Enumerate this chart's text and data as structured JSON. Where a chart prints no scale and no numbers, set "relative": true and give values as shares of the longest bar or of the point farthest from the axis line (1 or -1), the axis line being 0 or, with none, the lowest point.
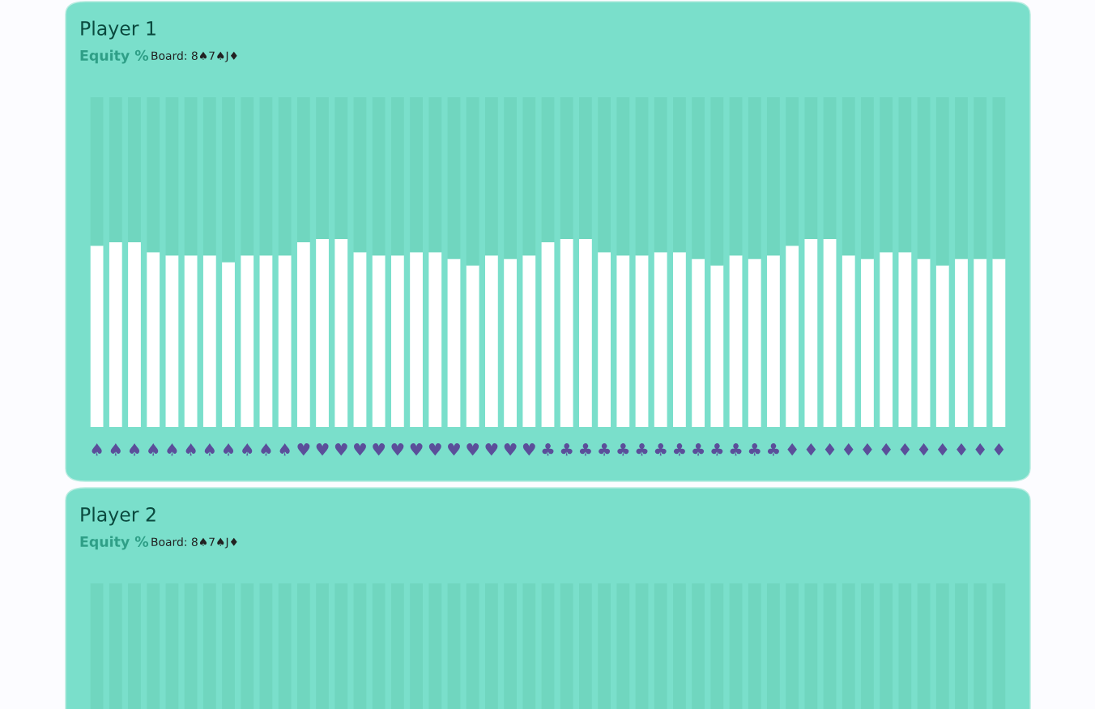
{
  "chart_data": [
    {
      "type": "bar",
      "title": "Player 1",
      "subtitle": "Equity %",
      "annotations": [
        "Board: 8♠7♠J♦"
      ],
      "relative": true,
      "stacked": true,
      "tick_labels": "x",
      "categories": [
        "♠",
        "♠",
        "♠",
        "♠",
        "♠",
        "♠",
        "♠",
        "♠",
        "♠",
        "♠",
        "♠",
        "♥",
        "♥",
        "♥",
        "♥",
        "♥",
        "♥",
        "♥",
        "♥",
        "♥",
        "♥",
        "♥",
        "♥",
        "♥",
        "♣",
        "♣",
        "♣",
        "♣",
        "♣",
        "♣",
        "♣",
        "♣",
        "♣",
        "♣",
        "♣",
        "♣",
        "♣",
        "♦",
        "♦",
        "♦",
        "♦",
        "♦",
        "♦",
        "♦",
        "♦",
        "♦",
        "♦",
        "♦",
        "♦"
      ],
      "series": [
        {
          "color": "#ffffff",
          "values": [
            0.55,
            0.56,
            0.56,
            0.53,
            0.52,
            0.52,
            0.52,
            0.5,
            0.52,
            0.52,
            0.52,
            0.56,
            0.57,
            0.57,
            0.53,
            0.52,
            0.52,
            0.53,
            0.53,
            0.51,
            0.49,
            0.52,
            0.51,
            0.52,
            0.56,
            0.57,
            0.57,
            0.53,
            0.52,
            0.52,
            0.53,
            0.53,
            0.51,
            0.49,
            0.52,
            0.51,
            0.52,
            0.55,
            0.57,
            0.57,
            0.52,
            0.51,
            0.53,
            0.53,
            0.51,
            0.49,
            0.51,
            0.51,
            0.51
          ]
        },
        {
          "color": "#70d6bf",
          "values": [
            0.45,
            0.44,
            0.44,
            0.47,
            0.48,
            0.48,
            0.48,
            0.5,
            0.48,
            0.48,
            0.48,
            0.44,
            0.43,
            0.43,
            0.47,
            0.48,
            0.48,
            0.47,
            0.47,
            0.49,
            0.51,
            0.48,
            0.49,
            0.48,
            0.44,
            0.43,
            0.43,
            0.47,
            0.48,
            0.48,
            0.47,
            0.47,
            0.49,
            0.51,
            0.48,
            0.49,
            0.48,
            0.45,
            0.43,
            0.43,
            0.48,
            0.49,
            0.47,
            0.47,
            0.49,
            0.51,
            0.49,
            0.49,
            0.49
          ]
        }
      ]
    },
    {
      "type": "other",
      "title": "Player 2",
      "subtitle": "Equity %",
      "annotations": [
        "Board: 8♠7♠J♦"
      ]
    }
  ]
}
